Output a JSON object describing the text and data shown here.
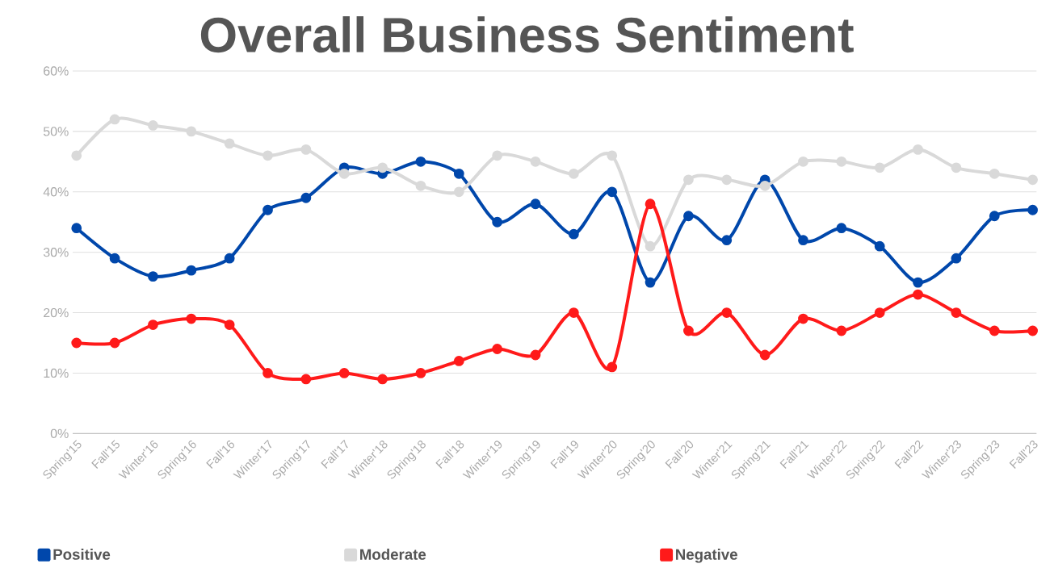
{
  "chart_data": {
    "type": "line",
    "title": "Overall Business Sentiment",
    "categories": [
      "Spring'15",
      "Fall'15",
      "Winter'16",
      "Spring'16",
      "Fall'16",
      "Winter'17",
      "Spring'17",
      "Fall'17",
      "Winter'18",
      "Spring'18",
      "Fall'18",
      "Winter'19",
      "Spring'19",
      "Fall'19",
      "Winter'20",
      "Spring'20",
      "Fall'20",
      "Winter'21",
      "Spring'21",
      "Fall'21",
      "Winter'22",
      "Spring'22",
      "Fall'22",
      "Winter'23",
      "Spring'23",
      "Fall'23"
    ],
    "series": [
      {
        "name": "Positive",
        "color": "#0047ab",
        "values": [
          34,
          29,
          26,
          27,
          29,
          37,
          39,
          44,
          43,
          45,
          43,
          35,
          38,
          33,
          40,
          25,
          36,
          32,
          42,
          32,
          34,
          31,
          25,
          29,
          36,
          37
        ]
      },
      {
        "name": "Moderate",
        "color": "#d9d9d9",
        "values": [
          46,
          52,
          51,
          50,
          48,
          46,
          47,
          43,
          44,
          41,
          40,
          46,
          45,
          43,
          46,
          31,
          42,
          42,
          41,
          45,
          45,
          44,
          47,
          44,
          43,
          42
        ]
      },
      {
        "name": "Negative",
        "color": "#ff1a1a",
        "values": [
          15,
          15,
          18,
          19,
          18,
          10,
          9,
          10,
          9,
          10,
          12,
          14,
          13,
          20,
          11,
          38,
          17,
          20,
          13,
          19,
          17,
          20,
          23,
          20,
          17,
          17
        ]
      }
    ],
    "ylim": [
      0,
      60
    ],
    "yticks": [
      {
        "value": 0,
        "label": "0%"
      },
      {
        "value": 10,
        "label": "10%"
      },
      {
        "value": 20,
        "label": "20%"
      },
      {
        "value": 30,
        "label": "30%"
      },
      {
        "value": 40,
        "label": "40%"
      },
      {
        "value": 50,
        "label": "50%"
      },
      {
        "value": 60,
        "label": "60%"
      }
    ],
    "grid": "y",
    "legend": "bottom",
    "marker": "circle",
    "line_style": "solid"
  }
}
